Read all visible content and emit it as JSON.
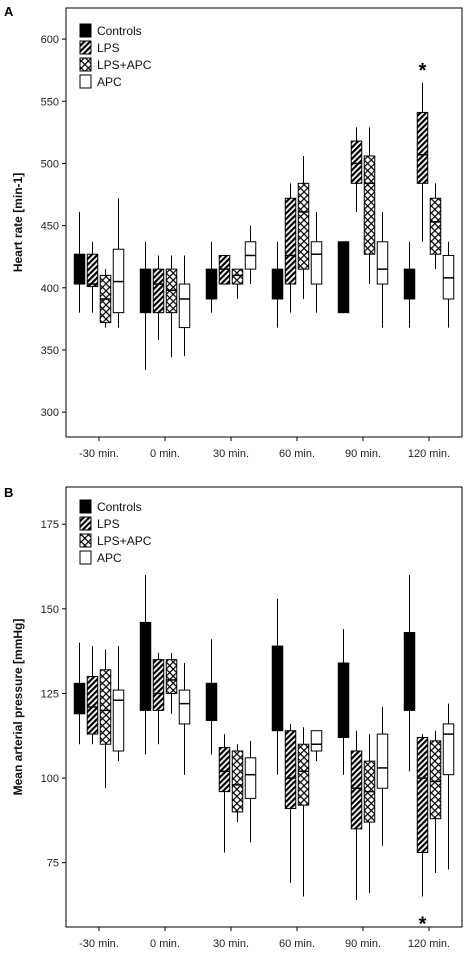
{
  "chart_data": [
    {
      "panel": "A",
      "type": "box",
      "ylabel": "Heart rate [min-1]",
      "xlabel": "",
      "ylim": [
        280,
        625
      ],
      "yticks": [
        300,
        350,
        400,
        450,
        500,
        550,
        600
      ],
      "categories": [
        "-30 min.",
        "0 min.",
        "30 min.",
        "60 min.",
        "90 min.",
        "120 min."
      ],
      "legend": [
        "Controls",
        "LPS",
        "LPS+APC",
        "APC"
      ],
      "legend_position": "top-left",
      "series_styles": {
        "Controls": "solid-black",
        "LPS": "diagonal-hatch",
        "LPS+APC": "crosshatch",
        "APC": "white"
      },
      "series": [
        {
          "name": "Controls",
          "boxes": [
            {
              "min": 380,
              "q1": 403,
              "median": 403,
              "q3": 427,
              "max": 461
            },
            {
              "min": 334,
              "q1": 380,
              "median": 380,
              "q3": 415,
              "max": 437
            },
            {
              "min": 380,
              "q1": 391,
              "median": 391,
              "q3": 415,
              "max": 437
            },
            {
              "min": 368,
              "q1": 391,
              "median": 391,
              "q3": 415,
              "max": 437
            },
            {
              "min": 380,
              "q1": 380,
              "median": 380,
              "q3": 437,
              "max": 437
            },
            {
              "min": 368,
              "q1": 391,
              "median": 391,
              "q3": 415,
              "max": 437
            }
          ]
        },
        {
          "name": "LPS",
          "boxes": [
            {
              "min": 380,
              "q1": 401,
              "median": 403,
              "q3": 427,
              "max": 437
            },
            {
              "min": 358,
              "q1": 380,
              "median": 403,
              "q3": 415,
              "max": 426
            },
            {
              "min": 403,
              "q1": 403,
              "median": 415,
              "q3": 426,
              "max": 426
            },
            {
              "min": 380,
              "q1": 403,
              "median": 426,
              "q3": 472,
              "max": 484
            },
            {
              "min": 461,
              "q1": 484,
              "median": 500,
              "q3": 518,
              "max": 529
            },
            {
              "min": 437,
              "q1": 484,
              "median": 507,
              "q3": 541,
              "max": 565
            }
          ]
        },
        {
          "name": "LPS+APC",
          "boxes": [
            {
              "min": 368,
              "q1": 372,
              "median": 391,
              "q3": 410,
              "max": 415
            },
            {
              "min": 344,
              "q1": 380,
              "median": 398,
              "q3": 415,
              "max": 426
            },
            {
              "min": 391,
              "q1": 403,
              "median": 410,
              "q3": 415,
              "max": 415
            },
            {
              "min": 391,
              "q1": 415,
              "median": 461,
              "q3": 484,
              "max": 506
            },
            {
              "min": 403,
              "q1": 427,
              "median": 484,
              "q3": 506,
              "max": 529
            },
            {
              "min": 415,
              "q1": 427,
              "median": 453,
              "q3": 472,
              "max": 484
            }
          ]
        },
        {
          "name": "APC",
          "boxes": [
            {
              "min": 368,
              "q1": 380,
              "median": 405,
              "q3": 431,
              "max": 472
            },
            {
              "min": 345,
              "q1": 368,
              "median": 391,
              "q3": 403,
              "max": 426
            },
            {
              "min": 403,
              "q1": 415,
              "median": 426,
              "q3": 437,
              "max": 450
            },
            {
              "min": 380,
              "q1": 403,
              "median": 427,
              "q3": 437,
              "max": 461
            },
            {
              "min": 368,
              "q1": 403,
              "median": 415,
              "q3": 437,
              "max": 461
            },
            {
              "min": 368,
              "q1": 391,
              "median": 408,
              "q3": 426,
              "max": 437
            }
          ]
        }
      ],
      "annotations": [
        {
          "text": "*",
          "category": "120 min.",
          "series": "LPS",
          "value": 575
        }
      ]
    },
    {
      "panel": "B",
      "type": "box",
      "ylabel": "Mean arterial pressure [mmHg]",
      "xlabel": "",
      "ylim": [
        56,
        186
      ],
      "yticks": [
        75,
        100,
        125,
        150,
        175
      ],
      "categories": [
        "-30 min.",
        "0 min.",
        "30 min.",
        "60 min.",
        "90 min.",
        "120 min."
      ],
      "legend": [
        "Controls",
        "LPS",
        "LPS+APC",
        "APC"
      ],
      "legend_position": "top-left",
      "series_styles": {
        "Controls": "solid-black",
        "LPS": "diagonal-hatch",
        "LPS+APC": "crosshatch",
        "APC": "white"
      },
      "series": [
        {
          "name": "Controls",
          "boxes": [
            {
              "min": 110,
              "q1": 119,
              "median": 119,
              "q3": 128,
              "max": 140
            },
            {
              "min": 107,
              "q1": 120,
              "median": 120,
              "q3": 146,
              "max": 160
            },
            {
              "min": 107,
              "q1": 117,
              "median": 117,
              "q3": 128,
              "max": 141
            },
            {
              "min": 101,
              "q1": 114,
              "median": 114,
              "q3": 139,
              "max": 153
            },
            {
              "min": 101,
              "q1": 112,
              "median": 112,
              "q3": 134,
              "max": 144
            },
            {
              "min": 102,
              "q1": 120,
              "median": 120,
              "q3": 143,
              "max": 160
            }
          ]
        },
        {
          "name": "LPS",
          "boxes": [
            {
              "min": 110,
              "q1": 113,
              "median": 121,
              "q3": 130,
              "max": 139
            },
            {
              "min": 110,
              "q1": 120,
              "median": 125,
              "q3": 135,
              "max": 137
            },
            {
              "min": 78,
              "q1": 96,
              "median": 102,
              "q3": 109,
              "max": 113
            },
            {
              "min": 69,
              "q1": 91,
              "median": 100,
              "q3": 114,
              "max": 116
            },
            {
              "min": 64,
              "q1": 85,
              "median": 97,
              "q3": 108,
              "max": 114
            },
            {
              "min": 65,
              "q1": 78,
              "median": 100,
              "q3": 112,
              "max": 113
            }
          ]
        },
        {
          "name": "LPS+APC",
          "boxes": [
            {
              "min": 97,
              "q1": 110,
              "median": 120,
              "q3": 132,
              "max": 138
            },
            {
              "min": 119,
              "q1": 125,
              "median": 129,
              "q3": 135,
              "max": 137
            },
            {
              "min": 87,
              "q1": 90,
              "median": 98,
              "q3": 108,
              "max": 110
            },
            {
              "min": 65,
              "q1": 92,
              "median": 102,
              "q3": 110,
              "max": 115
            },
            {
              "min": 66,
              "q1": 87,
              "median": 96,
              "q3": 105,
              "max": 113
            },
            {
              "min": 72,
              "q1": 88,
              "median": 99,
              "q3": 111,
              "max": 114
            }
          ]
        },
        {
          "name": "APC",
          "boxes": [
            {
              "min": 105,
              "q1": 108,
              "median": 123,
              "q3": 126,
              "max": 139
            },
            {
              "min": 101,
              "q1": 116,
              "median": 122,
              "q3": 126,
              "max": 134
            },
            {
              "min": 81,
              "q1": 94,
              "median": 101,
              "q3": 106,
              "max": 111
            },
            {
              "min": 105,
              "q1": 108,
              "median": 110,
              "q3": 114,
              "max": 114
            },
            {
              "min": 80,
              "q1": 97,
              "median": 103,
              "q3": 113,
              "max": 121
            },
            {
              "min": 73,
              "q1": 101,
              "median": 113,
              "q3": 116,
              "max": 122
            }
          ]
        }
      ],
      "annotations": [
        {
          "text": "*",
          "category": "120 min.",
          "series": "LPS",
          "value": 57
        }
      ]
    }
  ]
}
